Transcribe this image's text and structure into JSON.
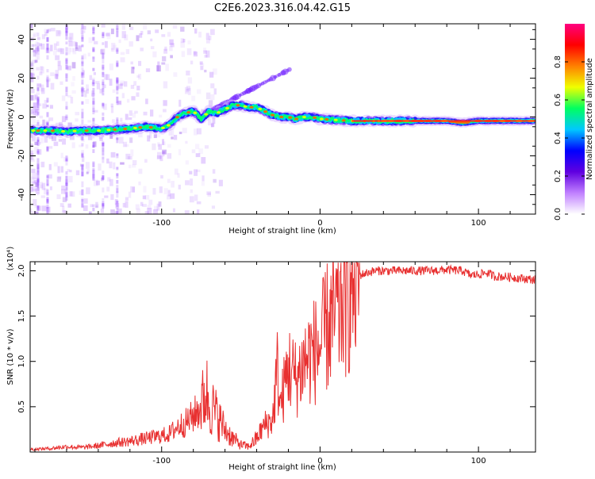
{
  "title": "C2E6.2023.316.04.42.G15",
  "chart_data": [
    {
      "type": "heatmap",
      "xlabel": "Height of straight line (km)",
      "ylabel": "Frequency (Hz)",
      "xlim": [
        -183,
        136
      ],
      "ylim": [
        -50,
        48
      ],
      "xticks": [
        -100,
        0,
        100
      ],
      "yticks": [
        -40,
        -20,
        0,
        20,
        40
      ],
      "colorbar": {
        "label": "Normalized spectral amplitude",
        "range": [
          0,
          1
        ],
        "ticks": [
          "0.0",
          "0.2",
          "0.4",
          "0.6",
          "0.8"
        ],
        "colors": [
          "#ffffff",
          "#c080ff",
          "#6000e0",
          "#0000ff",
          "#00c8ff",
          "#00ff60",
          "#f0ff00",
          "#ff8000",
          "#ff0000",
          "#ff0080"
        ]
      },
      "ridge": {
        "x": [
          -183,
          -170,
          -160,
          -150,
          -140,
          -130,
          -120,
          -110,
          -100,
          -95,
          -90,
          -85,
          -80,
          -75,
          -70,
          -65,
          -60,
          -55,
          -50,
          -45,
          -40,
          -35,
          -30,
          -25,
          -20,
          -15,
          -10,
          -5,
          0,
          10,
          20,
          40,
          60,
          80,
          90,
          100,
          110,
          120,
          136
        ],
        "y": [
          -7,
          -7,
          -7.5,
          -7,
          -7,
          -6.5,
          -6,
          -5,
          -6,
          -4,
          0,
          2,
          3,
          -1,
          3,
          2,
          4,
          6,
          6,
          5,
          5,
          3,
          1,
          0,
          0,
          -1,
          0,
          0,
          -1,
          -1.5,
          -2,
          -2,
          -2,
          -2,
          -3,
          -2,
          -2,
          -2,
          -2
        ]
      }
    },
    {
      "type": "line",
      "xlabel": "Height of straight line (km)",
      "ylabel": "SNR (10 * v/v)",
      "scale_note": "(x10⁴)",
      "xlim": [
        -183,
        136
      ],
      "ylim": [
        0,
        21000
      ],
      "xticks": [
        -100,
        0,
        100
      ],
      "yticks": [
        5000,
        10000,
        15000,
        20000
      ],
      "ytick_labels": [
        "0.5",
        "1.0",
        "1.5",
        "2.0"
      ],
      "series": [
        {
          "color": "#e83030",
          "x": [
            -183,
            -170,
            -160,
            -150,
            -140,
            -130,
            -120,
            -110,
            -100,
            -95,
            -90,
            -85,
            -80,
            -75,
            -72,
            -70,
            -65,
            -60,
            -55,
            -50,
            -45,
            -40,
            -35,
            -30,
            -27,
            -25,
            -20,
            -15,
            -10,
            -5,
            0,
            5,
            10,
            15,
            20,
            25,
            30,
            35,
            40,
            50,
            60,
            70,
            80,
            90,
            95,
            100,
            105,
            110,
            120,
            136
          ],
          "y": [
            300,
            400,
            600,
            500,
            700,
            1000,
            1200,
            1500,
            1800,
            2000,
            2800,
            3200,
            4000,
            5000,
            6800,
            5500,
            4000,
            2500,
            1500,
            800,
            600,
            1500,
            3000,
            3500,
            9000,
            5000,
            9500,
            8000,
            10000,
            11000,
            11500,
            14000,
            15000,
            17000,
            18500,
            19500,
            19800,
            20000,
            20000,
            20000,
            20000,
            20000,
            20100,
            20000,
            19500,
            19600,
            19800,
            19400,
            19300,
            19000
          ]
        }
      ]
    }
  ]
}
